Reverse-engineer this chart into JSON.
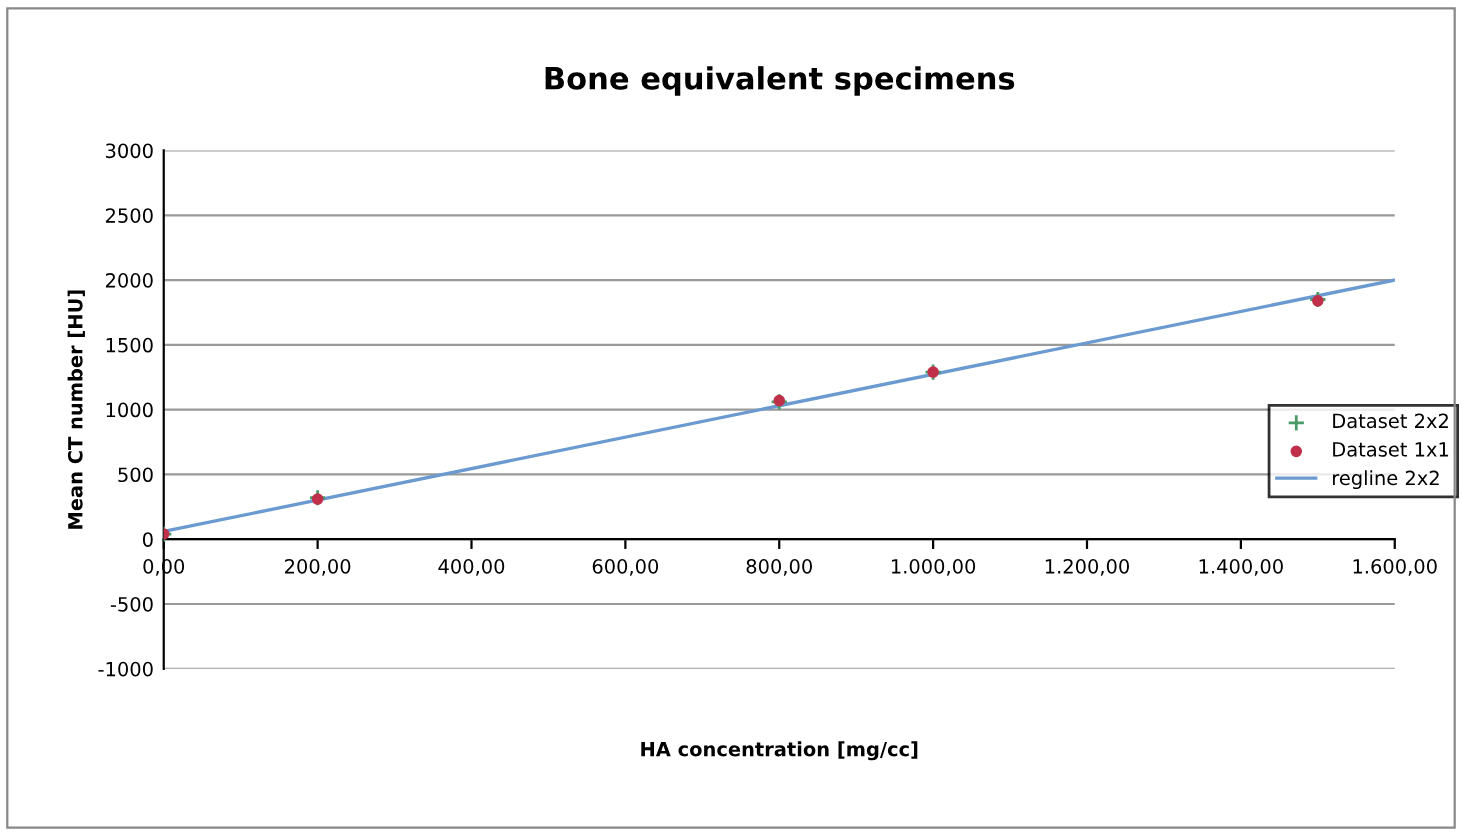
{
  "chart_data": {
    "type": "scatter",
    "title": "Bone equivalent specimens",
    "xlabel": "HA concentration [mg/cc]",
    "ylabel": "Mean CT number [HU]",
    "xlim": [
      0,
      1600
    ],
    "ylim": [
      -1000,
      3000
    ],
    "xticks": [
      {
        "value": 0,
        "label": "0,00"
      },
      {
        "value": 200,
        "label": "200,00"
      },
      {
        "value": 400,
        "label": "400,00"
      },
      {
        "value": 600,
        "label": "600,00"
      },
      {
        "value": 800,
        "label": "800,00"
      },
      {
        "value": 1000,
        "label": "1.000,00"
      },
      {
        "value": 1200,
        "label": "1.200,00"
      },
      {
        "value": 1400,
        "label": "1.400,00"
      },
      {
        "value": 1600,
        "label": "1.600,00"
      }
    ],
    "yticks": [
      -1000,
      -500,
      0,
      500,
      1000,
      1500,
      2000,
      2500,
      3000
    ],
    "grid": "y",
    "legend": "right",
    "series": [
      {
        "name": "Dataset 2x2",
        "marker": "cross",
        "color": "#4a9a6a",
        "x": [
          0,
          200,
          800,
          1000,
          1500
        ],
        "values": [
          40,
          320,
          1060,
          1290,
          1850
        ]
      },
      {
        "name": "Dataset 1x1",
        "marker": "circle",
        "color": "#c0304a",
        "x": [
          0,
          200,
          800,
          1000,
          1500
        ],
        "values": [
          40,
          310,
          1070,
          1290,
          1840
        ]
      },
      {
        "name": "regline 2x2",
        "type": "line",
        "marker": "none",
        "color": "#6a9ad0",
        "x": [
          0,
          1600
        ],
        "values": [
          60,
          2000
        ]
      }
    ]
  }
}
